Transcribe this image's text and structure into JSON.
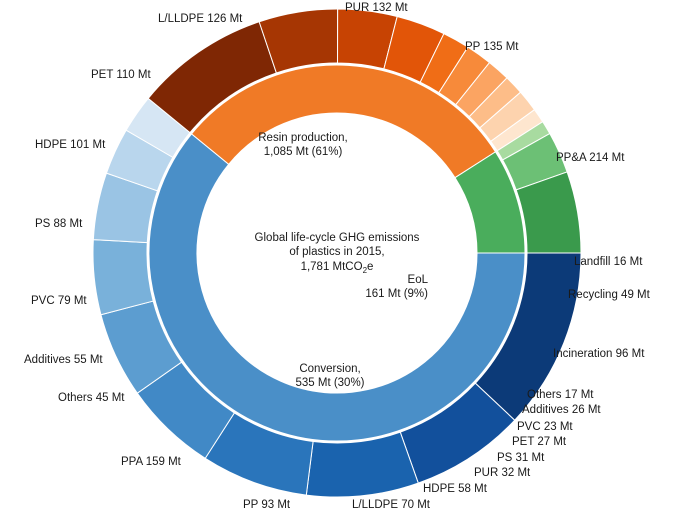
{
  "chart_data": {
    "type": "pie",
    "center_text": {
      "line1": "Global life-cycle GHG emissions",
      "line2": "of plastics in 2015,",
      "line3_prefix": "1,781 MtCO",
      "line3_sub": "2",
      "line3_suffix": "e"
    },
    "inner_ring": [
      {
        "key": "resin",
        "line1": "Resin production,",
        "line2": "1,085 Mt (61%)",
        "value": 1085,
        "color": "#4a8fc8"
      },
      {
        "key": "eol",
        "line1": "EoL",
        "line2": "161 Mt (9%)",
        "value": 161,
        "color": "#4aad5c"
      },
      {
        "key": "conversion",
        "line1": "Conversion,",
        "line2": "535 Mt (30%)",
        "value": 535,
        "color": "#f07a26"
      }
    ],
    "outer_ring": [
      {
        "label": "PP&A 214 Mt",
        "value": 214,
        "color": "#0c3a78",
        "group": "resin"
      },
      {
        "label": "PP 135 Mt",
        "value": 135,
        "color": "#12509c",
        "group": "resin"
      },
      {
        "label": "PUR 132 Mt",
        "value": 132,
        "color": "#1a63ae",
        "group": "resin"
      },
      {
        "label": "L/LLDPE 126 Mt",
        "value": 126,
        "color": "#2a75bb",
        "group": "resin"
      },
      {
        "label": "PET 110 Mt",
        "value": 110,
        "color": "#4189c6",
        "group": "resin"
      },
      {
        "label": "HDPE 101 Mt",
        "value": 101,
        "color": "#5c9dd0",
        "group": "resin"
      },
      {
        "label": "PS 88 Mt",
        "value": 88,
        "color": "#79b1da",
        "group": "resin"
      },
      {
        "label": "PVC 79 Mt",
        "value": 79,
        "color": "#9ac4e4",
        "group": "resin"
      },
      {
        "label": "Additives 55 Mt",
        "value": 55,
        "color": "#b9d6ed",
        "group": "resin"
      },
      {
        "label": "Others 45 Mt",
        "value": 45,
        "color": "#d6e6f4",
        "group": "resin"
      },
      {
        "label": "PPA 159 Mt",
        "value": 159,
        "color": "#7f2704",
        "group": "conversion"
      },
      {
        "label": "PP 93 Mt",
        "value": 93,
        "color": "#a63603",
        "group": "conversion"
      },
      {
        "label": "L/LLDPE 70 Mt",
        "value": 70,
        "color": "#c74303",
        "group": "conversion"
      },
      {
        "label": "HDPE 58 Mt",
        "value": 58,
        "color": "#e25508",
        "group": "conversion"
      },
      {
        "label": "PUR 32 Mt",
        "value": 32,
        "color": "#f06d16",
        "group": "conversion"
      },
      {
        "label": "PS 31 Mt",
        "value": 31,
        "color": "#f78a3a",
        "group": "conversion"
      },
      {
        "label": "PET 27 Mt",
        "value": 27,
        "color": "#fba462",
        "group": "conversion"
      },
      {
        "label": "PVC 23 Mt",
        "value": 23,
        "color": "#fdbd88",
        "group": "conversion"
      },
      {
        "label": "Additives 26 Mt",
        "value": 26,
        "color": "#fdd3ae",
        "group": "conversion"
      },
      {
        "label": "Others 17 Mt",
        "value": 17,
        "color": "#fee6cf",
        "group": "conversion"
      },
      {
        "label": "Incineration 96 Mt",
        "value": 96,
        "color": "#3a9a4c",
        "group": "eol"
      },
      {
        "label": "Recycling 49 Mt",
        "value": 49,
        "color": "#6cc075",
        "group": "eol"
      },
      {
        "label": "Landfill 16 Mt",
        "value": 16,
        "color": "#a8dba0",
        "group": "eol"
      }
    ]
  }
}
